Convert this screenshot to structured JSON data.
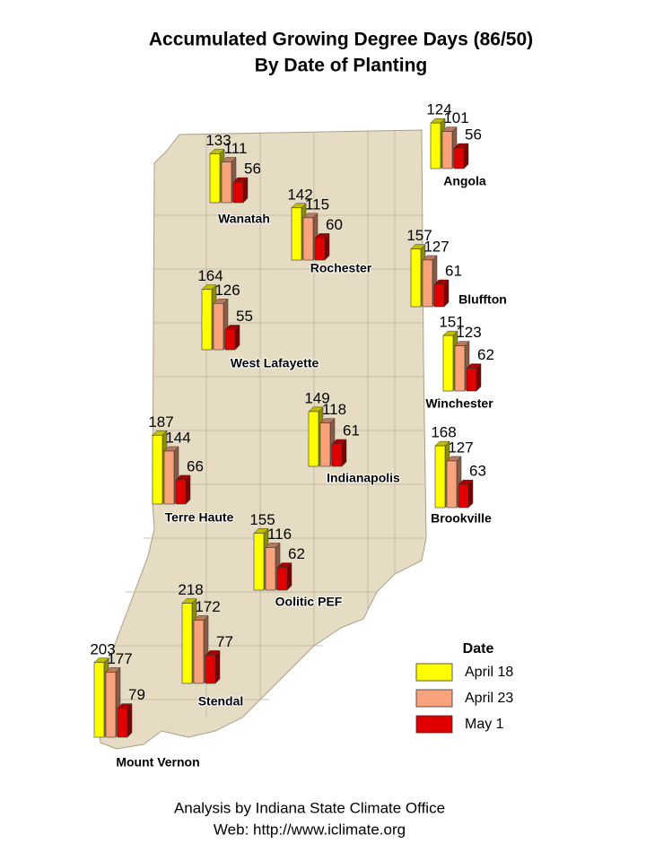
{
  "title": [
    "Accumulated Growing Degree Days (86/50)",
    "By Date of Planting"
  ],
  "legend": {
    "title": "Date",
    "series": [
      {
        "name": "April 18",
        "color": "#ffff00"
      },
      {
        "name": "April 23",
        "color": "#f9a37c"
      },
      {
        "name": "May 1",
        "color": "#e00000"
      }
    ]
  },
  "stations": [
    {
      "name": "Wanatah",
      "values": [
        133,
        111,
        56
      ]
    },
    {
      "name": "Angola",
      "values": [
        124,
        101,
        56
      ]
    },
    {
      "name": "Rochester",
      "values": [
        142,
        115,
        60
      ]
    },
    {
      "name": "Bluffton",
      "values": [
        157,
        127,
        61
      ]
    },
    {
      "name": "West Lafayette",
      "values": [
        164,
        126,
        55
      ]
    },
    {
      "name": "Winchester",
      "values": [
        151,
        123,
        62
      ]
    },
    {
      "name": "Indianapolis",
      "values": [
        149,
        118,
        61
      ]
    },
    {
      "name": "Terre Haute",
      "values": [
        187,
        144,
        66
      ]
    },
    {
      "name": "Brookville",
      "values": [
        168,
        127,
        63
      ]
    },
    {
      "name": "Oolitic PEF",
      "values": [
        155,
        116,
        62
      ]
    },
    {
      "name": "Stendal",
      "values": [
        218,
        172,
        77
      ]
    },
    {
      "name": "Mount Vernon",
      "values": [
        203,
        177,
        79
      ]
    }
  ],
  "footer": [
    "Analysis by Indiana State Climate Office",
    "Web: http://www.iclimate.org"
  ]
}
